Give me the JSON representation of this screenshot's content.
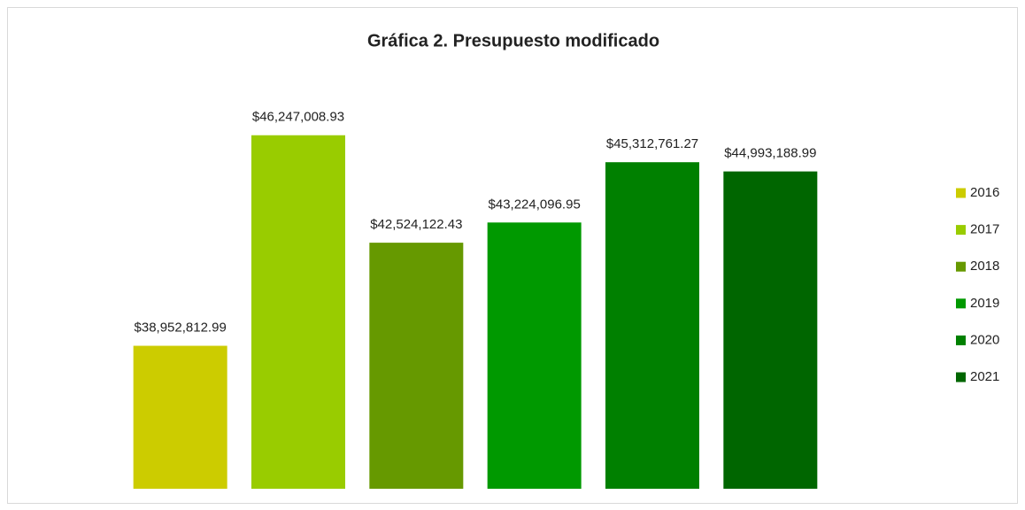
{
  "chart_data": {
    "type": "bar",
    "title": "Gráfica 2. Presupuesto modificado",
    "categories": [
      "2016",
      "2017",
      "2018",
      "2019",
      "2020",
      "2021"
    ],
    "values": [
      38952812.99,
      46247008.93,
      42524122.43,
      43224096.95,
      45312761.27,
      44993188.99
    ],
    "value_labels": [
      "$38,952,812.99",
      "$46,247,008.93",
      "$42,524,122.43",
      "$43,224,096.95",
      "$45,312,761.27",
      "$44,993,188.99"
    ],
    "colors": [
      "#cccc00",
      "#99cc00",
      "#669900",
      "#009900",
      "#008000",
      "#006600"
    ],
    "ylim": [
      34000000,
      48000000
    ],
    "legend": "right"
  }
}
